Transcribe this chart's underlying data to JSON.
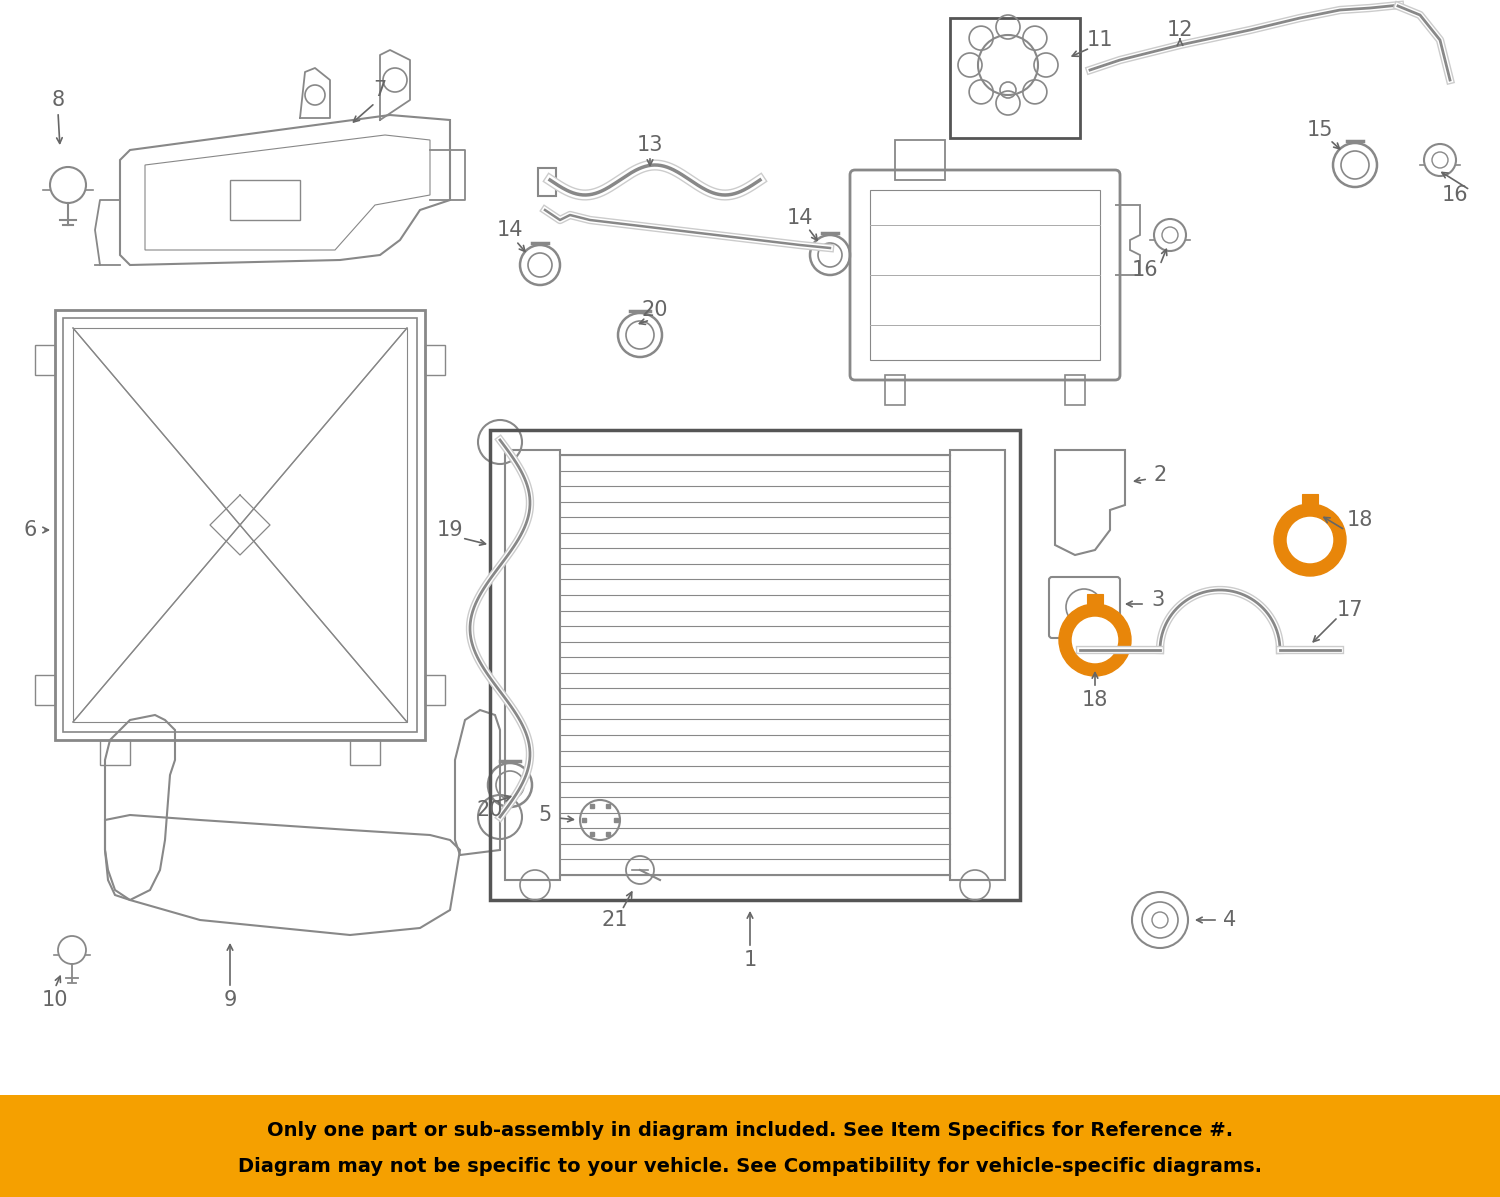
{
  "bg_color": "#ffffff",
  "part_color": "#888888",
  "dark_color": "#555555",
  "highlight_color": "#E8860A",
  "banner_bg": "#F5A000",
  "banner_text": "#000000",
  "label_color": "#666666",
  "line1": "Only one part or sub-assembly in diagram included. See Item Specifics for Reference #.",
  "line2": "Diagram may not be specific to your vehicle. See Compatibility for vehicle-specific diagrams."
}
